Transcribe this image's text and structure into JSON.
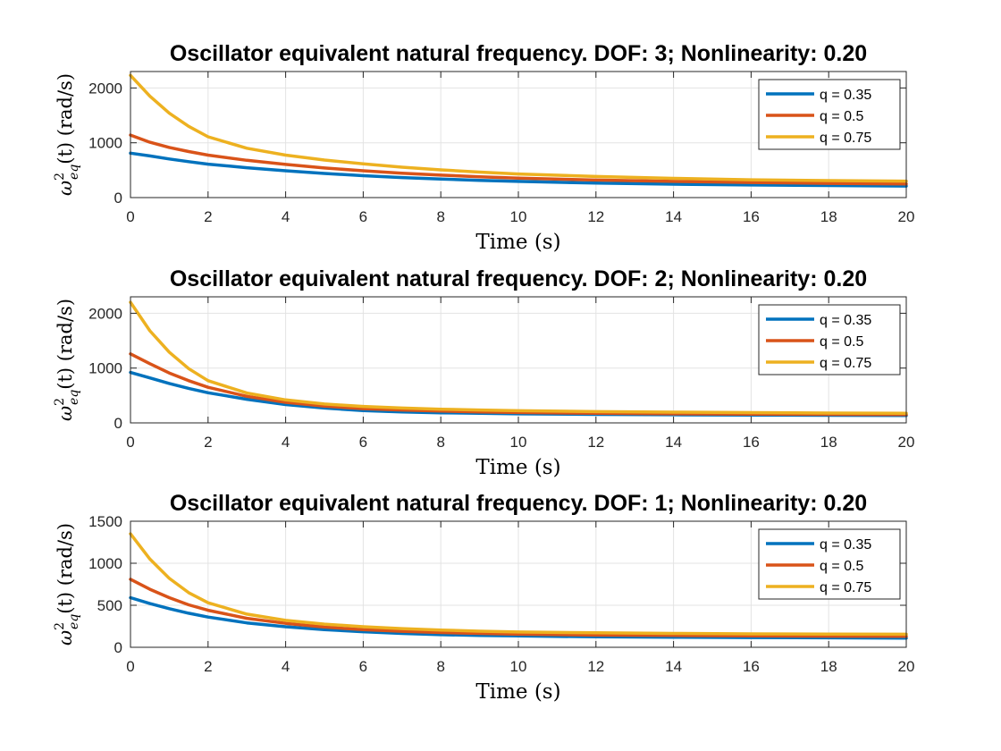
{
  "chart_data": [
    {
      "type": "line",
      "title": "Oscillator equivalent natural frequency. DOF: 3; Nonlinearity: 0.20",
      "xlabel": "Time (s)",
      "ylabel": "ω²eq(t) (rad/s)",
      "ylabel_parts": {
        "omega": "ω",
        "sup": "2",
        "sub": "eq",
        "rest": "(t)  (rad/s)"
      },
      "xlim": [
        0,
        20
      ],
      "ylim": [
        0,
        2300
      ],
      "xticks": [
        0,
        2,
        4,
        6,
        8,
        10,
        12,
        14,
        16,
        18,
        20
      ],
      "yticks": [
        0,
        1000,
        2000
      ],
      "grid": true,
      "legend_position": "top-right",
      "x": [
        0,
        0.5,
        1,
        1.5,
        2,
        3,
        4,
        5,
        6,
        7,
        8,
        9,
        10,
        12,
        14,
        16,
        18,
        20
      ],
      "series": [
        {
          "name": "q = 0.35",
          "color": "#0072BD",
          "values": [
            810,
            760,
            705,
            655,
            610,
            545,
            490,
            440,
            400,
            365,
            340,
            315,
            295,
            265,
            245,
            230,
            220,
            210
          ]
        },
        {
          "name": "q = 0.5",
          "color": "#D95319",
          "values": [
            1140,
            1010,
            915,
            840,
            775,
            680,
            605,
            540,
            490,
            445,
            410,
            380,
            355,
            320,
            295,
            275,
            260,
            250
          ]
        },
        {
          "name": "q = 0.75",
          "color": "#EDB120",
          "values": [
            2230,
            1850,
            1540,
            1300,
            1110,
            900,
            775,
            685,
            615,
            555,
            505,
            465,
            430,
            385,
            350,
            325,
            310,
            300
          ]
        }
      ]
    },
    {
      "type": "line",
      "title": "Oscillator equivalent natural frequency. DOF: 2; Nonlinearity: 0.20",
      "xlabel": "Time (s)",
      "ylabel": "ω²eq(t) (rad/s)",
      "ylabel_parts": {
        "omega": "ω",
        "sup": "2",
        "sub": "eq",
        "rest": "(t)  (rad/s)"
      },
      "xlim": [
        0,
        20
      ],
      "ylim": [
        0,
        2300
      ],
      "xticks": [
        0,
        2,
        4,
        6,
        8,
        10,
        12,
        14,
        16,
        18,
        20
      ],
      "yticks": [
        0,
        1000,
        2000
      ],
      "grid": true,
      "legend_position": "top-right",
      "x": [
        0,
        0.5,
        1,
        1.5,
        2,
        3,
        4,
        5,
        6,
        7,
        8,
        9,
        10,
        12,
        14,
        16,
        18,
        20
      ],
      "series": [
        {
          "name": "q = 0.35",
          "color": "#0072BD",
          "values": [
            920,
            820,
            720,
            630,
            550,
            430,
            335,
            270,
            225,
            200,
            185,
            175,
            165,
            155,
            148,
            142,
            138,
            135
          ]
        },
        {
          "name": "q = 0.5",
          "color": "#D95319",
          "values": [
            1260,
            1080,
            910,
            770,
            650,
            485,
            375,
            305,
            260,
            235,
            215,
            200,
            190,
            175,
            165,
            160,
            155,
            150
          ]
        },
        {
          "name": "q = 0.75",
          "color": "#EDB120",
          "values": [
            2200,
            1680,
            1290,
            990,
            770,
            545,
            420,
            345,
            300,
            270,
            250,
            235,
            222,
            205,
            195,
            187,
            180,
            175
          ]
        }
      ]
    },
    {
      "type": "line",
      "title": "Oscillator equivalent natural frequency. DOF: 1; Nonlinearity: 0.20",
      "xlabel": "Time (s)",
      "ylabel": "ω²eq(t) (rad/s)",
      "ylabel_parts": {
        "omega": "ω",
        "sup": "2",
        "sub": "eq",
        "rest": "(t)  (rad/s)"
      },
      "xlim": [
        0,
        20
      ],
      "ylim": [
        0,
        1500
      ],
      "xticks": [
        0,
        2,
        4,
        6,
        8,
        10,
        12,
        14,
        16,
        18,
        20
      ],
      "yticks": [
        0,
        500,
        1000,
        1500
      ],
      "grid": true,
      "legend_position": "top-right",
      "x": [
        0,
        0.5,
        1,
        1.5,
        2,
        3,
        4,
        5,
        6,
        7,
        8,
        9,
        10,
        12,
        14,
        16,
        18,
        20
      ],
      "series": [
        {
          "name": "q = 0.35",
          "color": "#0072BD",
          "values": [
            590,
            520,
            460,
            405,
            360,
            290,
            245,
            210,
            185,
            165,
            150,
            142,
            135,
            125,
            120,
            116,
            113,
            110
          ]
        },
        {
          "name": "q = 0.5",
          "color": "#D95319",
          "values": [
            810,
            690,
            590,
            505,
            440,
            345,
            285,
            240,
            210,
            190,
            175,
            165,
            155,
            145,
            140,
            135,
            132,
            130
          ]
        },
        {
          "name": "q = 0.75",
          "color": "#EDB120",
          "values": [
            1350,
            1050,
            820,
            650,
            530,
            395,
            320,
            275,
            245,
            222,
            205,
            192,
            182,
            172,
            165,
            160,
            157,
            155
          ]
        }
      ]
    }
  ]
}
